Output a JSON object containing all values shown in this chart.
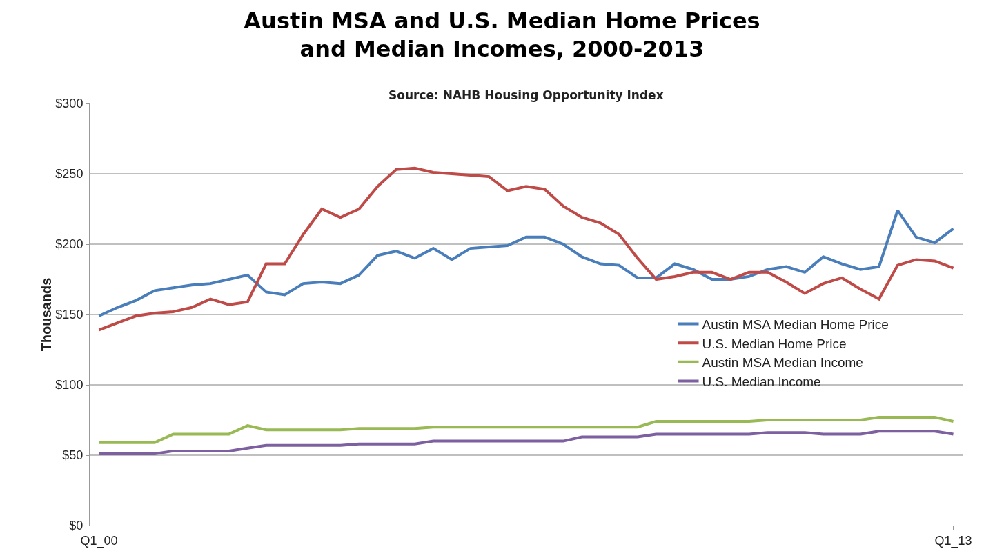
{
  "chart_data": {
    "type": "line",
    "title": "Austin MSA and U.S. Median Home Prices\nand Median Incomes, 2000-2013",
    "annotations": [
      "Source: NAHB Housing Opportunity Index"
    ],
    "ylabel": "Thousands",
    "categories": [
      "Q1_00",
      null,
      null,
      null,
      null,
      null,
      null,
      null,
      null,
      null,
      null,
      null,
      null,
      null,
      null,
      null,
      null,
      null,
      null,
      null,
      null,
      null,
      null,
      null,
      null,
      null,
      null,
      null,
      null,
      null,
      null,
      null,
      null,
      null,
      null,
      null,
      null,
      null,
      null,
      null,
      null,
      null,
      null,
      null,
      null,
      null,
      "Q1_13"
    ],
    "series": [
      {
        "name": "Austin MSA Median Home Price",
        "color": "#4a7ebb",
        "values": [
          149,
          155,
          160,
          167,
          169,
          171,
          172,
          175,
          178,
          166,
          164,
          172,
          173,
          172,
          178,
          192,
          195,
          190,
          197,
          189,
          197,
          198,
          199,
          205,
          205,
          200,
          191,
          186,
          185,
          176,
          176,
          186,
          182,
          175,
          175,
          177,
          182,
          184,
          180,
          191,
          186,
          182,
          184,
          224,
          205,
          201,
          211
        ]
      },
      {
        "name": "U.S. Median Home Price",
        "color": "#be4b48",
        "values": [
          139,
          144,
          149,
          151,
          152,
          155,
          161,
          157,
          159,
          186,
          186,
          207,
          225,
          219,
          225,
          241,
          253,
          254,
          251,
          250,
          249,
          248,
          238,
          241,
          239,
          227,
          219,
          215,
          207,
          190,
          175,
          177,
          180,
          180,
          175,
          180,
          180,
          173,
          165,
          172,
          176,
          168,
          161,
          185,
          189,
          188,
          183
        ]
      },
      {
        "name": "Austin MSA Median Income",
        "color": "#98b954",
        "values": [
          59,
          59,
          59,
          59,
          65,
          65,
          65,
          65,
          71,
          68,
          68,
          68,
          68,
          68,
          69,
          69,
          69,
          69,
          70,
          70,
          70,
          70,
          70,
          70,
          70,
          70,
          70,
          70,
          70,
          70,
          74,
          74,
          74,
          74,
          74,
          74,
          75,
          75,
          75,
          75,
          75,
          75,
          77,
          77,
          77,
          77,
          74
        ]
      },
      {
        "name": "U.S. Median Income",
        "color": "#7d60a0",
        "values": [
          51,
          51,
          51,
          51,
          53,
          53,
          53,
          53,
          55,
          57,
          57,
          57,
          57,
          57,
          58,
          58,
          58,
          58,
          60,
          60,
          60,
          60,
          60,
          60,
          60,
          60,
          63,
          63,
          63,
          63,
          65,
          65,
          65,
          65,
          65,
          65,
          66,
          66,
          66,
          65,
          65,
          65,
          67,
          67,
          67,
          67,
          65
        ]
      }
    ],
    "ylim": [
      0,
      300
    ],
    "yticks": [
      {
        "value": 0,
        "label": "$0"
      },
      {
        "value": 50,
        "label": "$50"
      },
      {
        "value": 100,
        "label": "$100"
      },
      {
        "value": 150,
        "label": "$150"
      },
      {
        "value": 200,
        "label": "$200"
      },
      {
        "value": 250,
        "label": "$250"
      },
      {
        "value": 300,
        "label": "$300"
      }
    ],
    "grid": "y",
    "legend": "right",
    "marker": "none",
    "line_style": "solid"
  }
}
